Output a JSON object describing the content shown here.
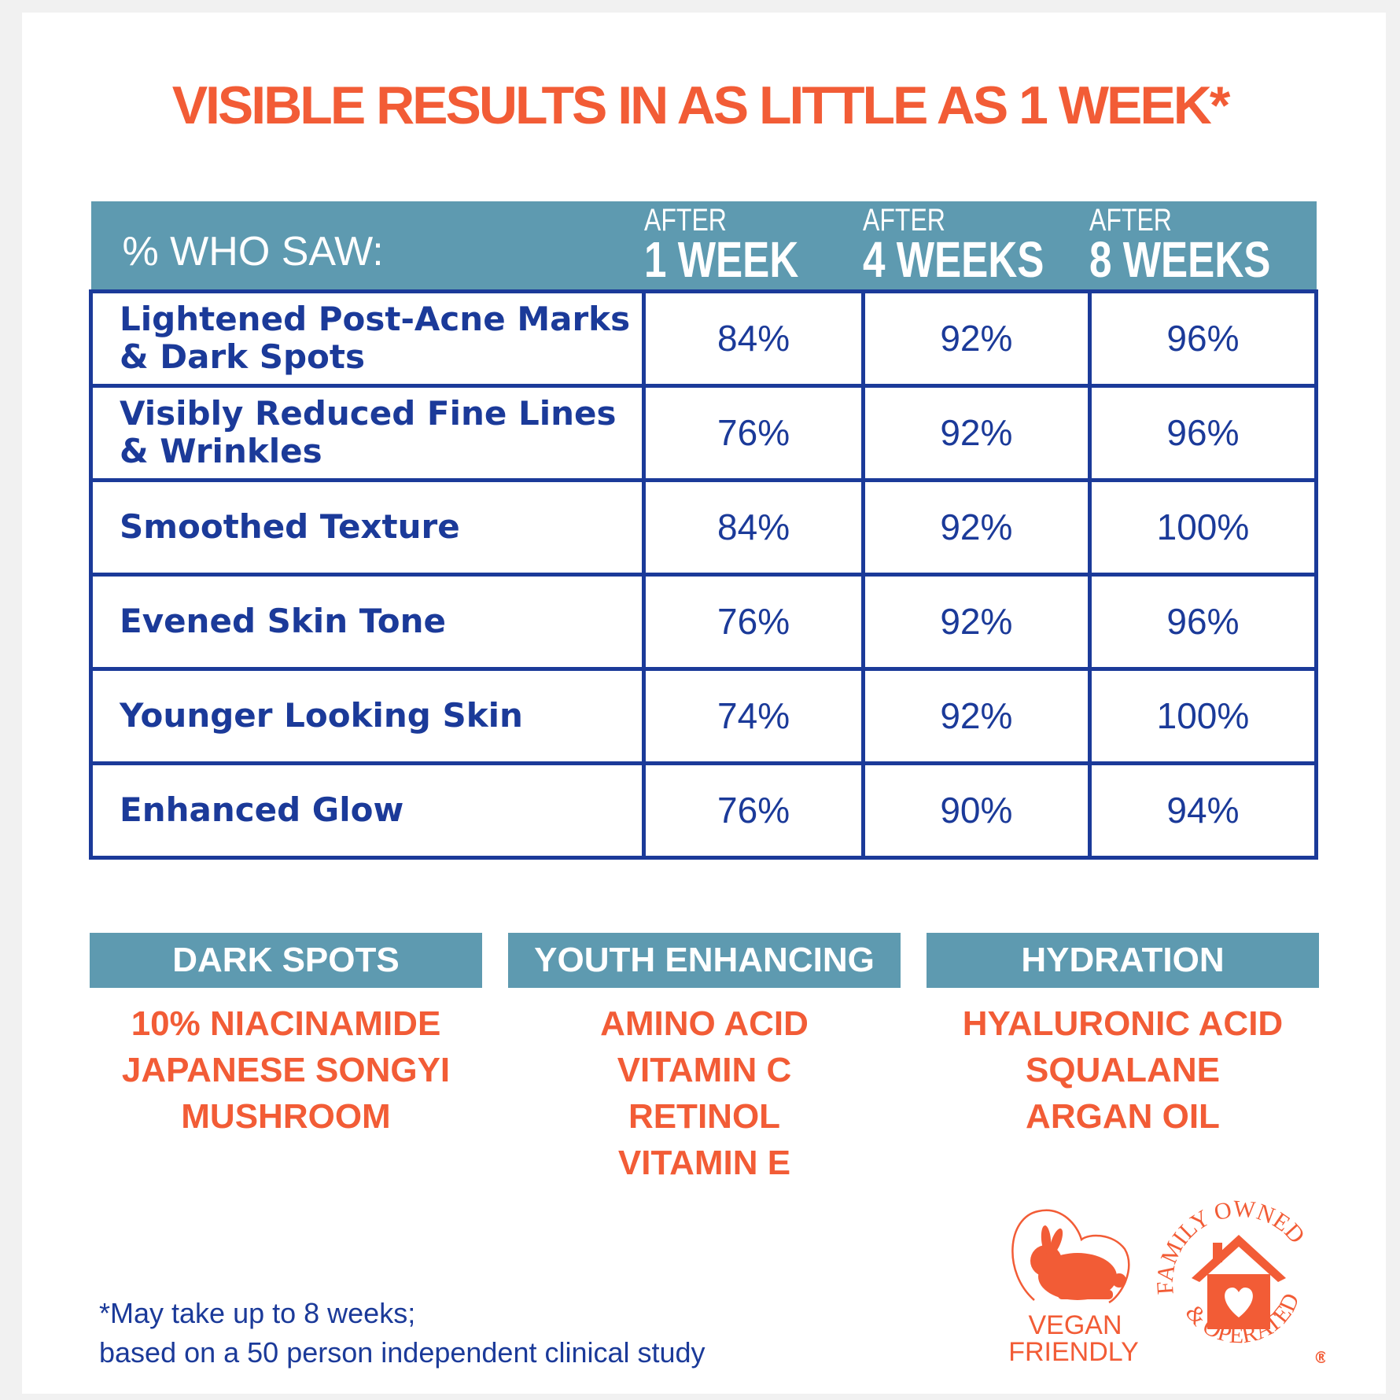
{
  "title": "VISIBLE RESULTS IN AS LITTLE AS 1 WEEK*",
  "table": {
    "label": "% WHO SAW:",
    "columns": [
      {
        "top": "AFTER",
        "main": "1 WEEK"
      },
      {
        "top": "AFTER",
        "main": "4 WEEKS"
      },
      {
        "top": "AFTER",
        "main": "8 WEEKS"
      }
    ],
    "rows": [
      {
        "label": "Lightened Post-Acne Marks & Dark Spots",
        "values": [
          "84%",
          "92%",
          "96%"
        ]
      },
      {
        "label": "Visibly Reduced Fine Lines & Wrinkles",
        "values": [
          "76%",
          "92%",
          "96%"
        ]
      },
      {
        "label": "Smoothed Texture",
        "values": [
          "84%",
          "92%",
          "100%"
        ]
      },
      {
        "label": "Evened Skin Tone",
        "values": [
          "76%",
          "92%",
          "96%"
        ]
      },
      {
        "label": "Younger Looking Skin",
        "values": [
          "74%",
          "92%",
          "100%"
        ]
      },
      {
        "label": "Enhanced Glow",
        "values": [
          "76%",
          "90%",
          "94%"
        ]
      }
    ]
  },
  "categories": [
    {
      "name": "DARK SPOTS",
      "ingredients": [
        "10% NIACINAMIDE",
        "JAPANESE SONGYI",
        "MUSHROOM"
      ]
    },
    {
      "name": "YOUTH ENHANCING",
      "ingredients": [
        "AMINO ACID",
        "VITAMIN C",
        "RETINOL",
        "VITAMIN E"
      ]
    },
    {
      "name": "HYDRATION",
      "ingredients": [
        "HYALURONIC ACID",
        "SQUALANE",
        "ARGAN OIL"
      ]
    }
  ],
  "footnote": [
    "*May take up to 8 weeks;",
    "based on a 50 person independent clinical study"
  ],
  "badges": {
    "vegan": [
      "VEGAN",
      "FRIENDLY"
    ],
    "family": "FAMILY OWNED & OPERATED",
    "registered": "®"
  },
  "colors": {
    "orange": "#f25c36",
    "teal": "#5e9ab0",
    "navy": "#1b3a99"
  }
}
